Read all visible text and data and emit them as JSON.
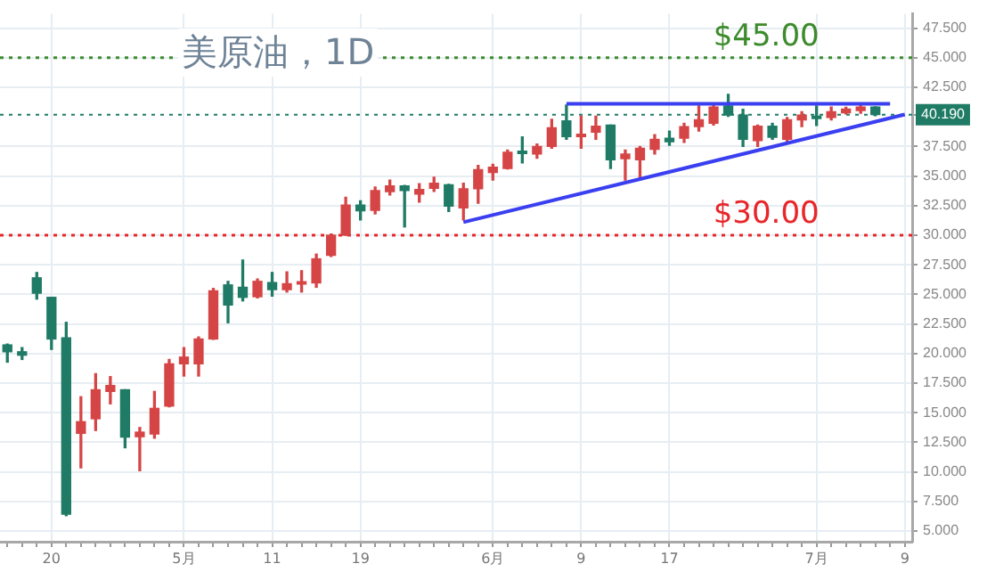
{
  "chart_data": {
    "type": "candlestick",
    "title": "美原油，1D",
    "categories": [
      null,
      null,
      null,
      "20",
      null,
      null,
      null,
      null,
      null,
      null,
      null,
      null,
      "5月",
      null,
      null,
      null,
      null,
      null,
      "11",
      null,
      null,
      null,
      null,
      null,
      "19",
      null,
      null,
      null,
      null,
      null,
      null,
      null,
      null,
      "6月",
      null,
      null,
      null,
      null,
      null,
      "9",
      null,
      null,
      null,
      null,
      null,
      "17",
      null,
      null,
      null,
      null,
      null,
      null,
      null,
      null,
      null,
      "7月",
      null,
      null,
      null,
      null,
      null,
      "9"
    ],
    "ohlc": [
      [
        20.73,
        20.8,
        19.27,
        20.15
      ],
      [
        20.15,
        20.5,
        19.5,
        19.86
      ],
      [
        26.4,
        26.85,
        24.6,
        25.1
      ],
      [
        24.75,
        24.75,
        20.35,
        21.23
      ],
      [
        21.33,
        22.64,
        6.3,
        6.42
      ],
      [
        13.26,
        16.35,
        10.34,
        14.24
      ],
      [
        14.49,
        18.3,
        13.5,
        16.94
      ],
      [
        16.8,
        18.05,
        15.75,
        17.3
      ],
      [
        16.94,
        16.94,
        12.04,
        12.94
      ],
      [
        12.97,
        13.75,
        10.1,
        13.36
      ],
      [
        13.2,
        16.8,
        12.85,
        15.37
      ],
      [
        15.56,
        19.5,
        15.5,
        19.13
      ],
      [
        19.13,
        20.5,
        18.1,
        19.7
      ],
      [
        19.13,
        21.4,
        18.1,
        21.23
      ],
      [
        21.23,
        25.5,
        21.2,
        25.3
      ],
      [
        25.8,
        26.1,
        22.6,
        24.1
      ],
      [
        25.6,
        27.9,
        24.45,
        24.75
      ],
      [
        24.8,
        26.3,
        24.7,
        26.1
      ],
      [
        26.0,
        26.85,
        24.85,
        25.4
      ],
      [
        25.4,
        26.9,
        25.2,
        25.9
      ],
      [
        25.87,
        27.0,
        25.2,
        26.07
      ],
      [
        25.97,
        28.4,
        25.6,
        28.0
      ],
      [
        28.3,
        30.1,
        28.2,
        30.0
      ],
      [
        30.0,
        33.2,
        30.0,
        32.55
      ],
      [
        32.55,
        32.9,
        31.3,
        32.06
      ],
      [
        32.1,
        34.07,
        31.8,
        33.77
      ],
      [
        33.68,
        34.66,
        33.4,
        34.17
      ],
      [
        34.17,
        34.2,
        30.7,
        33.77
      ],
      [
        33.48,
        34.36,
        32.8,
        33.87
      ],
      [
        33.97,
        34.9,
        33.7,
        34.4
      ],
      [
        34.26,
        34.3,
        32.0,
        32.45
      ],
      [
        32.3,
        34.4,
        31.3,
        33.92
      ],
      [
        33.92,
        35.9,
        32.7,
        35.54
      ],
      [
        35.3,
        36.0,
        34.66,
        35.74
      ],
      [
        35.64,
        37.2,
        35.6,
        37.0
      ],
      [
        37.1,
        38.3,
        36.1,
        36.9
      ],
      [
        36.86,
        37.7,
        36.5,
        37.5
      ],
      [
        37.5,
        39.8,
        37.35,
        39.07
      ],
      [
        39.66,
        41.0,
        38.1,
        38.33
      ],
      [
        38.33,
        40.05,
        37.35,
        38.53
      ],
      [
        38.7,
        40.05,
        38.1,
        39.2
      ],
      [
        39.3,
        39.3,
        35.64,
        36.37
      ],
      [
        36.47,
        37.2,
        34.66,
        36.86
      ],
      [
        36.37,
        37.5,
        34.9,
        37.35
      ],
      [
        37.25,
        38.5,
        36.86,
        38.1
      ],
      [
        38.19,
        38.8,
        37.6,
        37.9
      ],
      [
        38.19,
        39.46,
        37.84,
        39.17
      ],
      [
        39.17,
        40.93,
        38.8,
        39.75
      ],
      [
        39.46,
        41.0,
        39.3,
        40.83
      ],
      [
        40.93,
        41.9,
        40.05,
        40.15
      ],
      [
        40.15,
        40.64,
        37.5,
        38.1
      ],
      [
        38.0,
        39.3,
        37.5,
        39.2
      ],
      [
        39.2,
        39.46,
        38.1,
        38.28
      ],
      [
        38.1,
        39.95,
        37.9,
        39.75
      ],
      [
        39.75,
        40.44,
        39.17,
        40.15
      ],
      [
        40.05,
        40.93,
        39.27,
        39.85
      ],
      [
        39.95,
        40.83,
        39.75,
        40.44
      ],
      [
        40.35,
        40.8,
        40.25,
        40.65
      ],
      [
        40.54,
        41.1,
        40.3,
        40.83
      ],
      [
        40.83,
        40.85,
        40.1,
        40.19
      ],
      null,
      null
    ],
    "colors": [
      "#1f7b65",
      "#1f7b65",
      "#1f7b65",
      "#1f7b65",
      "#1f7b65",
      "#d64545",
      "#d64545",
      "#d64545",
      "#1f7b65",
      "#d64545",
      "#d64545",
      "#d64545",
      "#d64545",
      "#d64545",
      "#d64545",
      "#1f7b65",
      "#1f7b65",
      "#d64545",
      "#1f7b65",
      "#d64545",
      "#d64545",
      "#d64545",
      "#d64545",
      "#d64545",
      "#1f7b65",
      "#d64545",
      "#d64545",
      "#1f7b65",
      "#d64545",
      "#d64545",
      "#1f7b65",
      "#d64545",
      "#d64545",
      "#d64545",
      "#d64545",
      "#1f7b65",
      "#d64545",
      "#d64545",
      "#1f7b65",
      "#d64545",
      "#d64545",
      "#1f7b65",
      "#d64545",
      "#d64545",
      "#d64545",
      "#1f7b65",
      "#d64545",
      "#d64545",
      "#d64545",
      "#1f7b65",
      "#1f7b65",
      "#d64545",
      "#1f7b65",
      "#d64545",
      "#d64545",
      "#1f7b65",
      "#d64545",
      "#d64545",
      "#d64545",
      "#1f7b65",
      null,
      null
    ],
    "series": [
      {
        "type": "line",
        "color": "#3a3ff0",
        "values": [
          null,
          null,
          null,
          null,
          null,
          null,
          null,
          null,
          null,
          null,
          null,
          null,
          null,
          null,
          null,
          null,
          null,
          null,
          null,
          null,
          null,
          null,
          null,
          null,
          null,
          null,
          null,
          null,
          null,
          null,
          null,
          null,
          null,
          null,
          null,
          null,
          null,
          null,
          41.1,
          null,
          null,
          null,
          null,
          null,
          null,
          null,
          null,
          null,
          null,
          null,
          null,
          null,
          null,
          null,
          null,
          null,
          null,
          null,
          null,
          null,
          41.1,
          null
        ]
      },
      {
        "type": "line",
        "color": "#3a3ff0",
        "values": [
          null,
          null,
          null,
          null,
          null,
          null,
          null,
          null,
          null,
          null,
          null,
          null,
          null,
          null,
          null,
          null,
          null,
          null,
          null,
          null,
          null,
          null,
          null,
          null,
          null,
          null,
          null,
          null,
          null,
          null,
          null,
          31.1,
          null,
          null,
          null,
          null,
          null,
          null,
          null,
          null,
          null,
          null,
          null,
          null,
          null,
          null,
          null,
          null,
          null,
          null,
          null,
          null,
          null,
          null,
          null,
          null,
          null,
          null,
          null,
          null,
          null,
          40.2
        ]
      }
    ],
    "marker": "none",
    "ylim": [
      4.1,
      48.7
    ],
    "yticks": [
      {
        "value": 5,
        "label": "5.000"
      },
      {
        "value": 7.5,
        "label": "7.500"
      },
      {
        "value": 10,
        "label": "10.000"
      },
      {
        "value": 12.5,
        "label": "12.500"
      },
      {
        "value": 15,
        "label": "15.000"
      },
      {
        "value": 17.5,
        "label": "17.500"
      },
      {
        "value": 20,
        "label": "20.000"
      },
      {
        "value": 22.5,
        "label": "22.500"
      },
      {
        "value": 25,
        "label": "25.000"
      },
      {
        "value": 27.5,
        "label": "27.500"
      },
      {
        "value": 30,
        "label": "30.000"
      },
      {
        "value": 32.5,
        "label": "32.500"
      },
      {
        "value": 35,
        "label": "35.000"
      },
      {
        "value": 37.5,
        "label": "37.500"
      },
      {
        "value": 40.19,
        "label": "40.190"
      },
      {
        "value": 42.5,
        "label": "42.500"
      },
      {
        "value": 45,
        "label": "45.000"
      },
      {
        "value": 47.5,
        "label": "47.500"
      }
    ],
    "grid": true,
    "legend": false,
    "ref_lines": [
      {
        "axis": "y",
        "value": 45,
        "label": "$45.00",
        "color": "#3d8b2c",
        "line_style": "dotted"
      },
      {
        "axis": "y",
        "value": 30,
        "label": "$30.00",
        "color": "#e8262a",
        "line_style": "dotted"
      },
      {
        "axis": "y",
        "value": 40.19,
        "color": "#1f7b65",
        "line_style": "dotted"
      }
    ]
  }
}
